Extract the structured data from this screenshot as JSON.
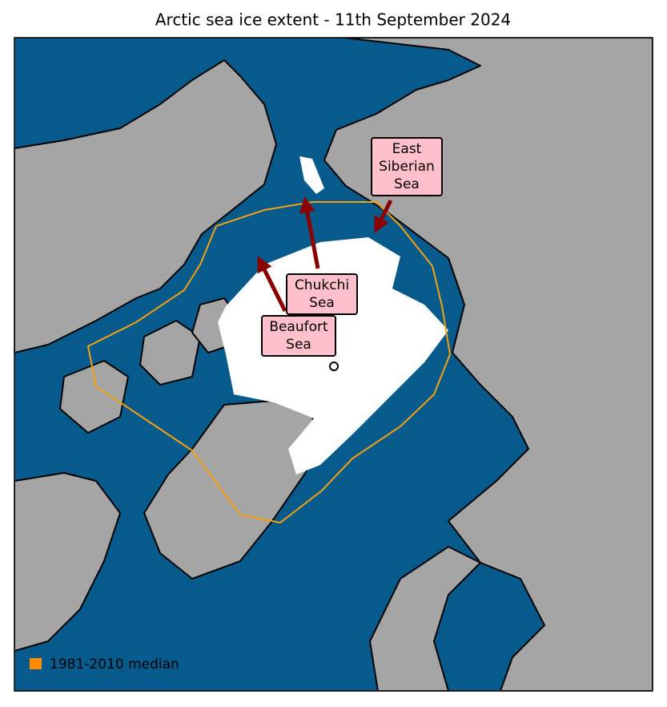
{
  "title": "Arctic sea ice extent - 11th September 2024",
  "annotations": [
    {
      "lines": [
        "East",
        "Siberian",
        "Sea"
      ]
    },
    {
      "lines": [
        "Chukchi",
        "Sea"
      ]
    },
    {
      "lines": [
        "Beaufort",
        "Sea"
      ]
    }
  ],
  "legend": {
    "label": "1981-2010 median"
  }
}
